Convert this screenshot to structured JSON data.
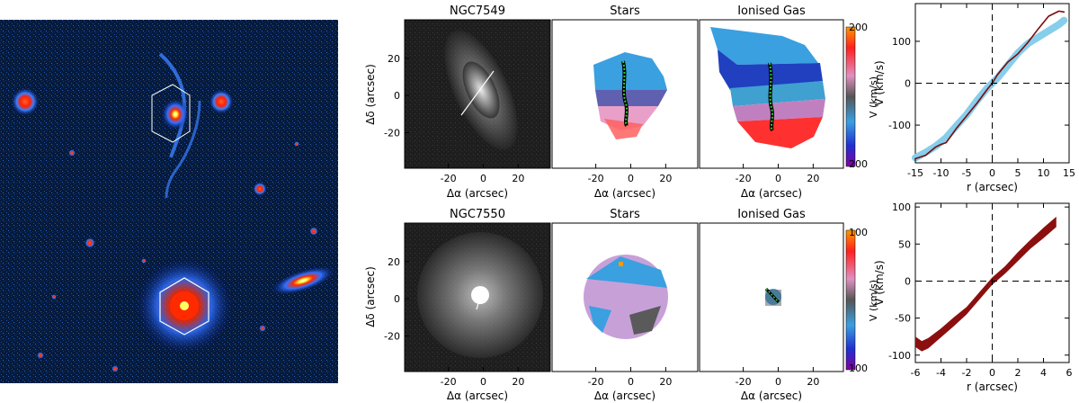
{
  "figure": {
    "panels": {
      "ngc7549": {
        "image_title": "NGC7549",
        "stars_title": "Stars",
        "gas_title": "Ionised Gas",
        "colorbar_ticks": [
          "200",
          "200"
        ],
        "colorbar_label": "V (km/s)"
      },
      "ngc7550": {
        "image_title": "NGC7550",
        "stars_title": "Stars",
        "gas_title": "Ionised Gas",
        "colorbar_ticks": [
          "100",
          "100"
        ],
        "colorbar_label": "V (km/s)"
      }
    },
    "map_axes": {
      "xlabel": "Δα  (arcsec)",
      "ylabel": "Δδ  (arcsec)",
      "x_ticks": [
        "-20",
        "0",
        "20"
      ],
      "y_ticks": [
        "20",
        "0",
        "-20"
      ]
    }
  },
  "chart_data": [
    {
      "type": "line",
      "panel": "NGC7549 rotation curve",
      "xlabel": "r (arcsec)",
      "ylabel": "V (km/s)",
      "xlim": [
        -15,
        15
      ],
      "ylim": [
        -190,
        190
      ],
      "x_ticks": [
        -15,
        -10,
        -5,
        0,
        5,
        10,
        15
      ],
      "y_ticks": [
        -100,
        0,
        100
      ],
      "series": [
        {
          "color": "#87ceeb",
          "style": "band",
          "x": [
            -15,
            -13,
            -11,
            -9,
            -7,
            -5,
            -3,
            -1,
            0,
            1,
            3,
            5,
            7,
            9,
            11,
            13,
            14
          ],
          "values": [
            -178,
            -165,
            -150,
            -130,
            -102,
            -75,
            -42,
            -12,
            0,
            12,
            42,
            72,
            95,
            110,
            125,
            140,
            150
          ]
        },
        {
          "color": "#7a0c0c",
          "style": "line",
          "x": [
            -15,
            -13,
            -11,
            -10,
            -9,
            -7,
            -5,
            -3,
            -1,
            0,
            1,
            3,
            5,
            7,
            9,
            11,
            13,
            14
          ],
          "values": [
            -180,
            -172,
            -152,
            -146,
            -142,
            -108,
            -78,
            -48,
            -15,
            0,
            20,
            50,
            70,
            98,
            130,
            160,
            172,
            170
          ]
        }
      ]
    },
    {
      "type": "area",
      "panel": "NGC7550 rotation curve",
      "xlabel": "r (arcsec)",
      "ylabel": "V (km/s)",
      "xlim": [
        -6,
        6
      ],
      "ylim": [
        -110,
        105
      ],
      "x_ticks": [
        -6,
        -4,
        -2,
        0,
        2,
        4,
        6
      ],
      "y_ticks": [
        -100,
        -50,
        0,
        50,
        100
      ],
      "series": [
        {
          "color": "#8b0f0f",
          "x": [
            -6,
            -5.5,
            -5,
            -4,
            -3,
            -2,
            -1,
            0,
            1,
            2,
            3,
            4,
            5
          ],
          "values": [
            -82,
            -88,
            -84,
            -70,
            -55,
            -40,
            -20,
            0,
            15,
            33,
            50,
            65,
            80
          ],
          "half_width": [
            7,
            7,
            7,
            6,
            6,
            5,
            5,
            5,
            5,
            6,
            6,
            7,
            7
          ]
        }
      ]
    }
  ]
}
